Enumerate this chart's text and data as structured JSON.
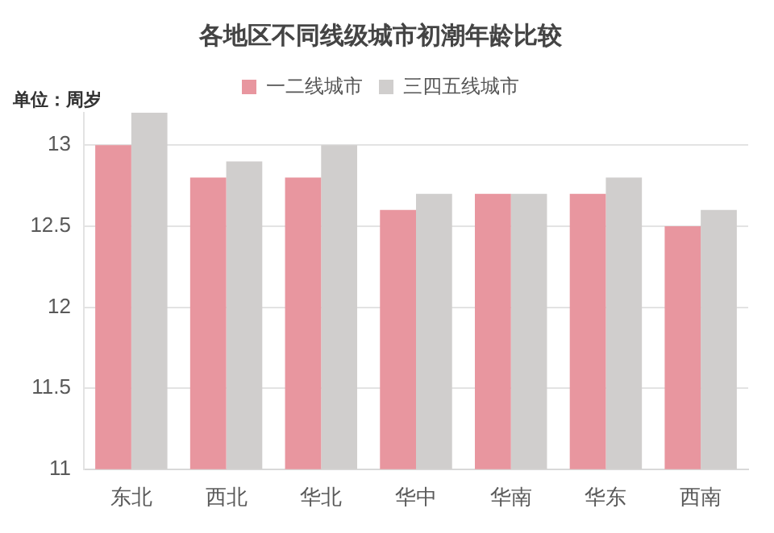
{
  "chart_data": {
    "type": "bar",
    "title": "各地区不同线级城市初潮年龄比较",
    "ylabel": "单位：周岁",
    "categories": [
      "东北",
      "西北",
      "华北",
      "华中",
      "华南",
      "华东",
      "西南"
    ],
    "series": [
      {
        "name": "一二线城市",
        "color": "#e8969f",
        "values": [
          13.0,
          12.8,
          12.8,
          12.6,
          12.7,
          12.7,
          12.5
        ]
      },
      {
        "name": "三四五线城市",
        "color": "#d0cecd",
        "values": [
          13.2,
          12.9,
          13.0,
          12.7,
          12.7,
          12.8,
          12.6
        ]
      }
    ],
    "ylim": [
      11,
      13.2
    ],
    "yticks": [
      11,
      11.5,
      12,
      12.5,
      13
    ],
    "grid": "y",
    "legend": "top"
  }
}
